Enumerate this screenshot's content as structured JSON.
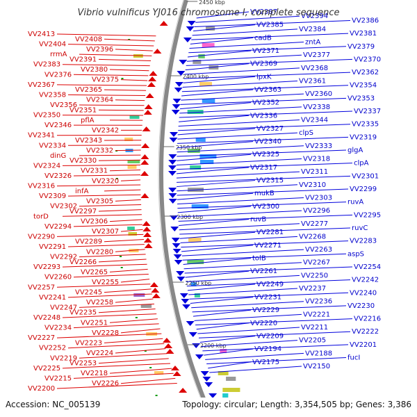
{
  "title": "Vibrio vulnificus YJ016 chromosome I, complete sequence",
  "footer": {
    "accession": "Accession: NC_005139",
    "summary": "Topology: circular; Length: 3,354,505 bp; Genes: 3,386"
  },
  "colors": {
    "forward": "#dd0000",
    "reverse": "#0000dd",
    "backbone": "#888888"
  },
  "scale_marks": [
    "2450 kbp",
    "2400 kbp",
    "2350 kbp",
    "2300 kbp",
    "2250 kbp",
    "2200 kbp"
  ],
  "left_labels": [
    "VV2413",
    "VV2408",
    "VV2404",
    "VV2396",
    "rrmA",
    "VV2391",
    "VV2383",
    "VV2380",
    "VV2376",
    "VV2375",
    "VV2367",
    "VV2365",
    "VV2358",
    "VV2364",
    "VV2356",
    "VV2351",
    "VV2350",
    "pflA",
    "VV2346",
    "VV2342",
    "VV2341",
    "VV2343",
    "VV2334",
    "VV2332",
    "dinG",
    "VV2330",
    "VV2324",
    "VV2331",
    "VV2326",
    "VV2320",
    "VV2316",
    "infA",
    "VV2309",
    "VV2305",
    "VV2302",
    "VV2297",
    "torD",
    "VV2306",
    "VV2294",
    "VV2307",
    "VV2290",
    "VV2289",
    "VV2291",
    "VV2280",
    "VV2292",
    "VV2266",
    "VV2293",
    "VV2265",
    "VV2260",
    "VV2255",
    "VV2257",
    "VV2245",
    "VV2241",
    "VV2258",
    "VV2247",
    "VV2235",
    "VV2248",
    "VV2251",
    "VV2234",
    "VV2228",
    "VV2227",
    "VV2223",
    "VV2252",
    "VV2224",
    "VV2219",
    "VV2253",
    "VV2225",
    "VV2218",
    "VV2215",
    "VV2226",
    "VV2200"
  ],
  "right_labels": [
    "VV2387",
    "VV2394",
    "VV2386",
    "VV2385",
    "VV2384",
    "VV2381",
    "cadB",
    "zntA",
    "VV2379",
    "VV2371",
    "VV2377",
    "VV2370",
    "VV2369",
    "VV2368",
    "VV2362",
    "lpxK",
    "VV2361",
    "VV2354",
    "VV2363",
    "VV2360",
    "VV2353",
    "VV2352",
    "VV2338",
    "VV2337",
    "VV2336",
    "VV2344",
    "VV2335",
    "VV2327",
    "clpS",
    "VV2319",
    "VV2340",
    "VV2333",
    "glgA",
    "VV2325",
    "VV2318",
    "clpA",
    "VV2317",
    "VV2311",
    "VV2301",
    "VV2315",
    "VV2310",
    "VV2299",
    "mukB",
    "VV2303",
    "ruvA",
    "VV2300",
    "VV2296",
    "VV2295",
    "ruvB",
    "VV2277",
    "ruvC",
    "VV2281",
    "VV2268",
    "VV2283",
    "VV2271",
    "VV2263",
    "aspS",
    "tolB",
    "VV2267",
    "VV2254",
    "VV2261",
    "VV2250",
    "VV2242",
    "VV2249",
    "VV2237",
    "VV2240",
    "VV2231",
    "VV2236",
    "VV2230",
    "VV2229",
    "VV2221",
    "VV2216",
    "VV2220",
    "VV2211",
    "VV2222",
    "VV2209",
    "VV2205",
    "VV2201",
    "VV2194",
    "VV2188",
    "fucI",
    "VV2175",
    "VV2150"
  ]
}
